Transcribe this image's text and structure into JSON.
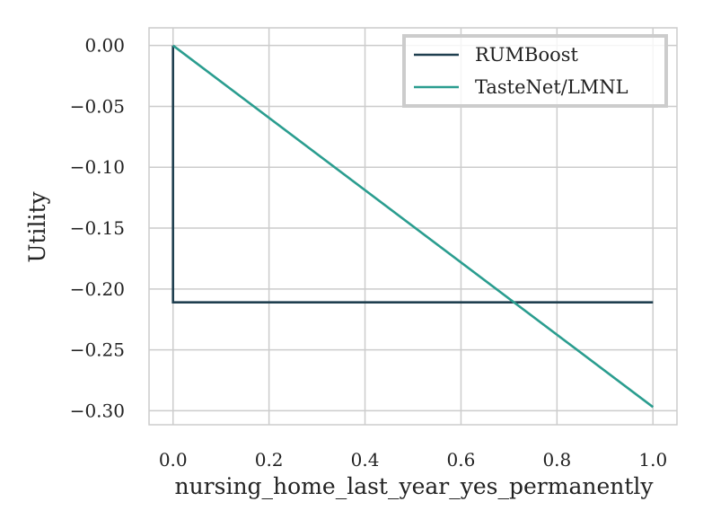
{
  "chart_data": {
    "type": "line",
    "title": "",
    "xlabel": "nursing_home_last_year_yes_permanently",
    "ylabel": "Utility",
    "xlim": [
      -0.05,
      1.05
    ],
    "ylim": [
      -0.3115,
      0.0145
    ],
    "xticks": [
      0.0,
      0.2,
      0.4,
      0.6,
      0.8,
      1.0
    ],
    "xtick_labels": [
      "0.0",
      "0.2",
      "0.4",
      "0.6",
      "0.8",
      "1.0"
    ],
    "yticks": [
      0.0,
      -0.05,
      -0.1,
      -0.15,
      -0.2,
      -0.25,
      -0.3
    ],
    "ytick_labels": [
      "0.00",
      "−0.05",
      "−0.10",
      "−0.15",
      "−0.20",
      "−0.25",
      "−0.30"
    ],
    "grid": true,
    "legend_position": "upper right",
    "series": [
      {
        "name": "RUMBoost",
        "color": "#1f3f4f",
        "points": [
          [
            0.0,
            0.0
          ],
          [
            0.0,
            -0.211
          ],
          [
            1.0,
            -0.211
          ]
        ]
      },
      {
        "name": "TasteNet/LMNL",
        "color": "#2a9d8f",
        "points": [
          [
            0.0,
            0.0
          ],
          [
            1.0,
            -0.297
          ]
        ]
      }
    ]
  }
}
